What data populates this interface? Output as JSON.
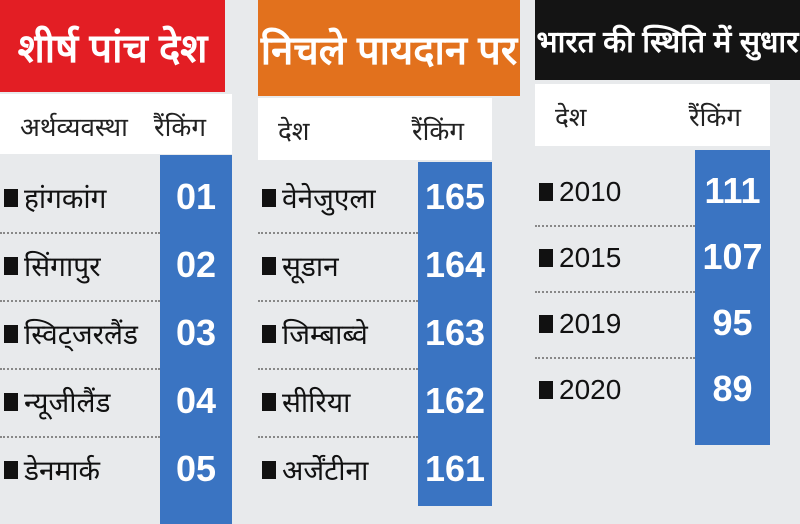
{
  "panels": [
    {
      "title": "शीर्ष पांच देश",
      "headers": [
        "अर्थव्यवस्था",
        "रैंकिंग"
      ],
      "rows": [
        [
          "हांगकांग",
          "01"
        ],
        [
          "सिंगापुर",
          "02"
        ],
        [
          "स्विट्जरलैंड",
          "03"
        ],
        [
          "न्यूजीलैंड",
          "04"
        ],
        [
          "डेनमार्क",
          "05"
        ]
      ]
    },
    {
      "title": "निचले पायदान पर",
      "headers": [
        "देश",
        "रैंकिंग"
      ],
      "rows": [
        [
          "वेनेजुएला",
          "165"
        ],
        [
          "सूडान",
          "164"
        ],
        [
          "जिम्बाब्वे",
          "163"
        ],
        [
          "सीरिया",
          "162"
        ],
        [
          "अर्जेंटीना",
          "161"
        ]
      ]
    },
    {
      "title": "भारत की स्थिति में सुधार",
      "headers": [
        "देश",
        "रैंकिंग"
      ],
      "rows": [
        [
          "2010",
          "111"
        ],
        [
          "2015",
          "107"
        ],
        [
          "2019",
          "95"
        ],
        [
          "2020",
          "89"
        ]
      ]
    }
  ]
}
